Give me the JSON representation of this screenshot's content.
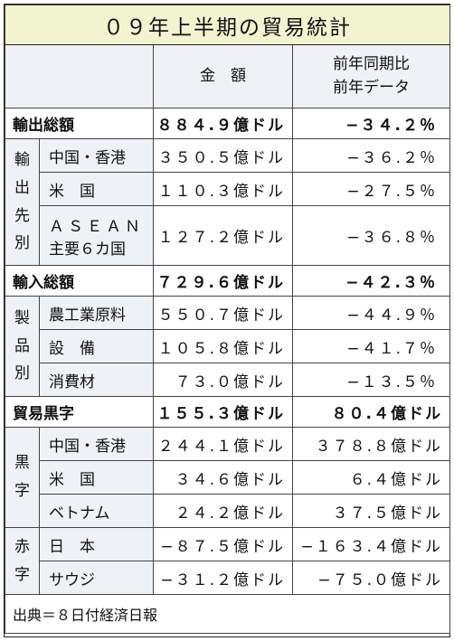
{
  "title": "０９年上半期の貿易統計",
  "header": {
    "amount": "金　額",
    "yoy_line1": "前年同期比",
    "yoy_line2": "前年データ"
  },
  "exports": {
    "label": "輸出総額",
    "amount": "８８４.９億ドル",
    "yoy": "−３４.２％",
    "side_label": [
      "輸",
      "出",
      "先",
      "別"
    ],
    "rows": [
      {
        "label": "中国・香港",
        "amount": "３５０.５億ドル",
        "yoy": "−３６.２％"
      },
      {
        "label": "米　国",
        "amount": "１１０.３億ドル",
        "yoy": "−２７.５％"
      },
      {
        "label_line1": "ＡＳＥＡＮ",
        "label_line2": "主要６カ国",
        "amount": "１２７.２億ドル",
        "yoy": "−３６.８％"
      }
    ]
  },
  "imports": {
    "label": "輸入総額",
    "amount": "７２９.６億ドル",
    "yoy": "−４２.３％",
    "side_label": [
      "製",
      "品",
      "別"
    ],
    "rows": [
      {
        "label": "農工業原料",
        "amount": "５５０.７億ドル",
        "yoy": "−４４.９％"
      },
      {
        "label": "設　備",
        "amount": "１０５.８億ドル",
        "yoy": "−４１.７％"
      },
      {
        "label": "消費材",
        "amount": "７３.０億ドル",
        "yoy": "−１３.５％"
      }
    ]
  },
  "balance": {
    "label": "貿易黒字",
    "amount": "１５５.３億ドル",
    "yoy": "８０.４億ドル",
    "surplus_label": [
      "黒",
      "字"
    ],
    "surplus_rows": [
      {
        "label": "中国・香港",
        "amount": "２４４.１億ドル",
        "yoy": "３７８.８億ドル"
      },
      {
        "label": "米　国",
        "amount": "３４.６億ドル",
        "yoy": "６.４億ドル"
      },
      {
        "label": "ベトナム",
        "amount": "２４.２億ドル",
        "yoy": "３７.５億ドル"
      }
    ],
    "deficit_label": [
      "赤",
      "字"
    ],
    "deficit_rows": [
      {
        "label": "日　本",
        "amount": "−８７.５億ドル",
        "yoy": "−１６３.４億ドル"
      },
      {
        "label": "サウジ",
        "amount": "−３１.２億ドル",
        "yoy": "−７５.０億ドル"
      }
    ]
  },
  "source": "出典＝８日付経済日報"
}
